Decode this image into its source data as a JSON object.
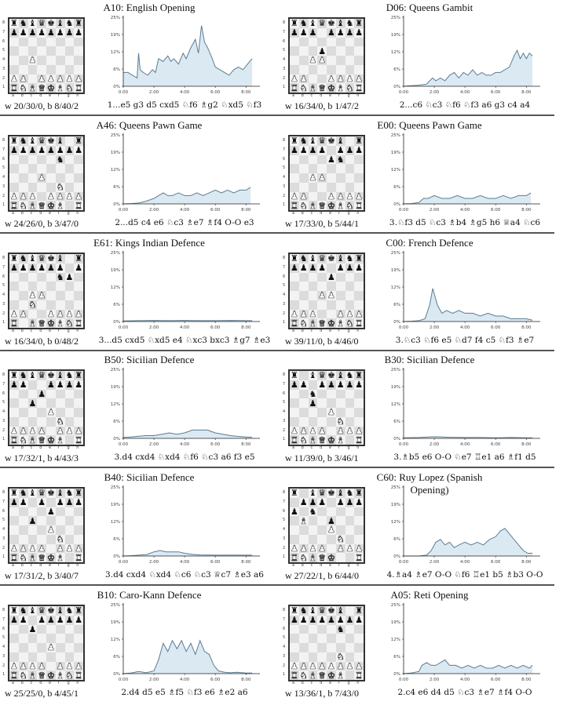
{
  "chart_data": {
    "type": "line",
    "yticks": [
      "0%",
      "6%",
      "12%",
      "19%",
      "25%"
    ],
    "xticks": [
      "0:00",
      "2:00",
      "4:00",
      "6:00",
      "8:00"
    ],
    "ylim": [
      0,
      25
    ],
    "xlim": [
      0,
      8.6
    ],
    "line_color": "#5b7d92",
    "fill_color": "#dbe9f2",
    "panels": [
      {
        "title": "A10: English Opening",
        "fen": "rnbqkbnr/pppppppp/8/8/2P5/8/PP1PPPPP/RNBQKBNR",
        "stats": "w 20/30/0, b 8/40/2",
        "moves": "1...e5 g3 d5 cxd5 ♘f6 ♗g2 ♘xd5 ♘f3",
        "x": [
          0,
          0.3,
          0.6,
          0.9,
          1.0,
          1.1,
          1.3,
          1.6,
          1.9,
          2.1,
          2.3,
          2.6,
          2.9,
          3.1,
          3.3,
          3.6,
          3.9,
          4.1,
          4.4,
          4.7,
          4.9,
          5.1,
          5.3,
          5.5,
          5.8,
          6.0,
          6.3,
          6.6,
          6.9,
          7.2,
          7.5,
          7.8,
          8.1,
          8.4
        ],
        "y": [
          5,
          5,
          4,
          3,
          12,
          6,
          5,
          4,
          6,
          5,
          10,
          9,
          11,
          9,
          10,
          8,
          12,
          10,
          14,
          17,
          12,
          22,
          16,
          14,
          10,
          7,
          6,
          5,
          4,
          6,
          7,
          6,
          8,
          10
        ]
      },
      {
        "title": "D06: Queens Gambit",
        "fen": "rnbqkbnr/ppp1pppp/8/3p4/2PP4/8/PP2PPPP/RNBQKBNR",
        "stats": "w 16/34/0, b 1/47/2",
        "moves": "2...c6 ♘c3 ♘f6 ♘f3 a6 g3 c4 a4",
        "x": [
          0,
          0.5,
          1.0,
          1.5,
          1.7,
          1.9,
          2.1,
          2.4,
          2.7,
          3.0,
          3.3,
          3.6,
          3.9,
          4.2,
          4.5,
          4.8,
          5.1,
          5.4,
          5.7,
          6.0,
          6.3,
          6.6,
          6.9,
          7.2,
          7.4,
          7.6,
          7.8,
          8.0,
          8.2,
          8.4
        ],
        "y": [
          0,
          0.2,
          0.4,
          0.8,
          2,
          3,
          2,
          3,
          2,
          4,
          5,
          3,
          5,
          4,
          6,
          4,
          5,
          4,
          4,
          5,
          5,
          6,
          7,
          11,
          13,
          10,
          12,
          10,
          12,
          11
        ]
      },
      {
        "title": "A46: Queens Pawn Game",
        "fen": "rnbqkb1r/pppppppp/5n2/8/3P4/5N2/PPP1PPPP/RNBQKB1R",
        "stats": "w 24/26/0, b 3/47/0",
        "moves": "2...d5 c4 e6 ♘c3 ♗e7 ♗f4 O-O e3",
        "x": [
          0,
          0.5,
          1.0,
          1.5,
          2.0,
          2.3,
          2.6,
          2.9,
          3.2,
          3.6,
          4.0,
          4.4,
          4.8,
          5.2,
          5.6,
          6.0,
          6.4,
          6.8,
          7.2,
          7.6,
          8.0,
          8.3
        ],
        "y": [
          0,
          0.1,
          0.3,
          1,
          2,
          3,
          4,
          3,
          3,
          4,
          3,
          3,
          4,
          3,
          4,
          5,
          4,
          5,
          4,
          5,
          5,
          6
        ]
      },
      {
        "title": "E00: Queens Pawn Game",
        "fen": "rnbqkb1r/pppp1ppp/4pn2/8/2PP4/8/PP2PPPP/RNBQKBNR",
        "stats": "w 17/33/0, b 5/44/1",
        "moves": "3.♘f3 d5 ♘c3 ♗b4 ♗g5 h6 ♕a4 ♘c6",
        "x": [
          0,
          0.5,
          1.0,
          1.3,
          1.6,
          2.0,
          2.5,
          3.0,
          3.5,
          4.0,
          4.5,
          5.0,
          5.5,
          6.0,
          6.5,
          7.0,
          7.5,
          8.0,
          8.3
        ],
        "y": [
          0,
          0.1,
          0.5,
          2,
          2,
          3,
          2,
          2,
          3,
          2,
          2,
          3,
          2,
          2,
          3,
          2,
          3,
          3,
          4
        ]
      },
      {
        "title": "E61: Kings Indian Defence",
        "fen": "rnbqkb1r/pppppp1p/5np1/8/2PP4/2N5/PP2PPPP/R1BQKBNR",
        "stats": "w 16/34/0, b 0/48/2",
        "moves": "3...d5 cxd5 ♘xd5 e4 ♘xc3 bxc3 ♗g7 ♗e3",
        "x": [
          0,
          1,
          2,
          3,
          4,
          5,
          6,
          7,
          8,
          8.4
        ],
        "y": [
          0.2,
          0.3,
          0.4,
          0.3,
          0.4,
          0.3,
          0.3,
          0.4,
          0.3,
          0.3
        ]
      },
      {
        "title": "C00: French Defence",
        "fen": "rnbqkbnr/pppp1ppp/4p3/8/3PP3/8/PPP2PPP/RNBQKBNR",
        "stats": "w 39/11/0, b 4/46/0",
        "moves": "3.♘c3 ♘f6 e5 ♘d7 f4 c5 ♘f3 ♗e7",
        "x": [
          0,
          0.5,
          1.0,
          1.4,
          1.7,
          1.9,
          2.2,
          2.5,
          2.8,
          3.2,
          3.6,
          4.0,
          4.5,
          5.0,
          5.5,
          6.0,
          6.5,
          7.0,
          7.5,
          8.0,
          8.4
        ],
        "y": [
          0,
          0.1,
          0.3,
          1,
          6,
          12,
          6,
          3,
          4,
          3,
          4,
          3,
          3,
          2,
          3,
          2,
          2,
          1,
          1,
          1,
          0.5
        ]
      },
      {
        "title": "B50: Sicilian Defence",
        "fen": "rnbqkbnr/pp2pppp/3p4/2p5/4P3/5N2/PPPP1PPP/RNBQKB1R",
        "stats": "w 17/32/1, b 4/43/3",
        "moves": "3.d4 cxd4 ♘xd4 ♘f6 ♘c3 a6 f3 e5",
        "x": [
          0,
          0.5,
          1.0,
          1.5,
          2.0,
          2.5,
          3.0,
          3.5,
          4.0,
          4.5,
          5.0,
          5.5,
          6.0,
          6.5,
          7.0,
          7.5,
          8.0,
          8.4
        ],
        "y": [
          0.3,
          0.5,
          0.8,
          1,
          1,
          1.5,
          2,
          1.5,
          2,
          3,
          3,
          3,
          2,
          1.5,
          1,
          0.7,
          0.5,
          0.4
        ]
      },
      {
        "title": "B30: Sicilian Defence",
        "fen": "r1bqkbnr/pp1ppppp/2n5/2p5/4P3/5N2/PPPP1PPP/RNBQKB1R",
        "stats": "w 11/39/0, b 3/46/1",
        "moves": "3.♗b5 e6 O-O ♘e7 ♖e1 a6 ♗f1 d5",
        "x": [
          0,
          1,
          2,
          3,
          4,
          5,
          6,
          7,
          8,
          8.4
        ],
        "y": [
          0.2,
          0.3,
          0.6,
          0.4,
          0.3,
          0.3,
          0.2,
          0.3,
          0.2,
          0.2
        ]
      },
      {
        "title": "B40: Sicilian Defence",
        "fen": "rnbqkbnr/pp1p1ppp/4p3/2p5/4P3/5N2/PPPP1PPP/RNBQKB1R",
        "stats": "w 17/31/2, b 3/40/7",
        "moves": "3.d4 cxd4 ♘xd4 ♘c6 ♘c3 ♕c7 ♗e3 a6",
        "x": [
          0,
          0.5,
          1.0,
          1.5,
          2.0,
          2.4,
          2.8,
          3.2,
          3.6,
          4.0,
          4.5,
          5.0,
          6.0,
          7.0,
          8.0,
          8.4
        ],
        "y": [
          0,
          0.1,
          0.3,
          0.5,
          1.5,
          2,
          1.5,
          1.5,
          1.5,
          1,
          0.6,
          0.4,
          0.3,
          0.3,
          0.3,
          0.3
        ]
      },
      {
        "title": "C60: Ruy Lopez (Spanish Opening)",
        "fen": "r1bqkbnr/1ppp1ppp/p1n5/1B2p3/4P3/5N2/PPPP1PPP/RNBQK2R",
        "stats": "w 27/22/1, b 6/44/0",
        "moves": "4.♗a4 ♗e7 O-O ♘f6 ♖e1 b5 ♗b3 O-O",
        "x": [
          0,
          0.5,
          1.0,
          1.5,
          1.8,
          2.1,
          2.4,
          2.7,
          3.0,
          3.3,
          3.6,
          4.0,
          4.4,
          4.8,
          5.2,
          5.6,
          6.0,
          6.3,
          6.6,
          6.9,
          7.2,
          7.5,
          7.8,
          8.1,
          8.4
        ],
        "y": [
          0,
          0,
          0,
          0.3,
          2,
          5,
          6,
          4,
          5,
          3,
          4,
          5,
          4,
          5,
          4,
          6,
          7,
          9,
          10,
          8,
          6,
          4,
          2,
          1,
          1
        ]
      },
      {
        "title": "B10: Caro-Kann Defence",
        "fen": "rnbqkbnr/pp1ppppp/2p5/8/4P3/8/PPPP1PPP/RNBQKBNR",
        "stats": "w 25/25/0, b 4/45/1",
        "moves": "2.d4 d5 e5 ♗f5 ♘f3 e6 ♗e2 a6",
        "x": [
          0,
          0.5,
          1.0,
          1.5,
          2.0,
          2.3,
          2.6,
          2.9,
          3.2,
          3.5,
          3.8,
          4.1,
          4.4,
          4.7,
          5.0,
          5.3,
          5.6,
          5.9,
          6.2,
          6.6,
          7.0,
          7.4,
          8.0,
          8.4
        ],
        "y": [
          0,
          0.2,
          0.8,
          0.3,
          1,
          5,
          11,
          8,
          12,
          9,
          12,
          8,
          11,
          7,
          12,
          8,
          7,
          3,
          1,
          0.5,
          0.3,
          0.5,
          0.2,
          0.2
        ]
      },
      {
        "title": "A05: Reti Opening",
        "fen": "rnbqkb1r/pppppppp/5n2/8/8/5N2/PPPPPPPP/RNBQKB1R",
        "stats": "w 13/36/1, b 7/43/0",
        "moves": "2.c4 e6 d4 d5 ♘c3 ♗e7 ♗f4 O-O",
        "x": [
          0,
          0.5,
          1.0,
          1.2,
          1.5,
          1.8,
          2.1,
          2.4,
          2.7,
          3.0,
          3.4,
          3.8,
          4.2,
          4.6,
          5.0,
          5.4,
          5.8,
          6.2,
          6.6,
          7.0,
          7.4,
          7.8,
          8.2,
          8.4
        ],
        "y": [
          0,
          0.2,
          0.8,
          3,
          4,
          3,
          3,
          4,
          5,
          3,
          3,
          2,
          3,
          2,
          3,
          2,
          2,
          3,
          2,
          3,
          2,
          3,
          2,
          3
        ]
      }
    ]
  }
}
